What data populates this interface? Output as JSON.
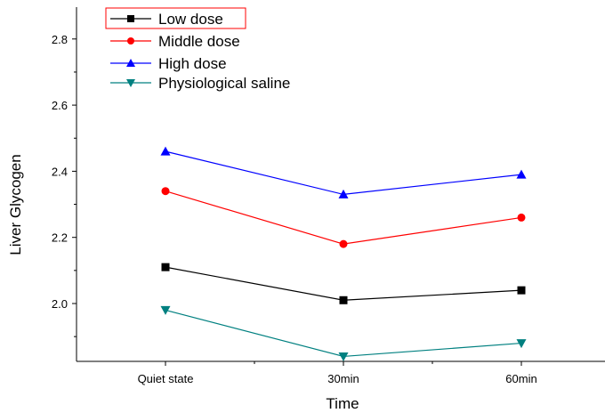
{
  "chart_data": {
    "type": "line",
    "title": "",
    "xlabel": "Time",
    "ylabel": "Liver Glycogen",
    "categories": [
      "Quiet state",
      "30min",
      "60min"
    ],
    "ylim": [
      1.8,
      2.9
    ],
    "yticks": [
      "2.0",
      "2.2",
      "2.4",
      "2.6",
      "2.8"
    ],
    "grid": false,
    "legend_position": "top-left",
    "series": [
      {
        "name": "Low dose",
        "values": [
          2.11,
          2.01,
          2.04
        ],
        "color": "#000000",
        "marker": "square"
      },
      {
        "name": "Middle dose",
        "values": [
          2.34,
          2.18,
          2.26
        ],
        "color": "#ff0000",
        "marker": "circle"
      },
      {
        "name": "High dose",
        "values": [
          2.46,
          2.33,
          2.39
        ],
        "color": "#0000ff",
        "marker": "triangle-up"
      },
      {
        "name": "Physiological saline",
        "values": [
          1.98,
          1.84,
          1.88
        ],
        "color": "#008080",
        "marker": "triangle-down"
      }
    ]
  }
}
